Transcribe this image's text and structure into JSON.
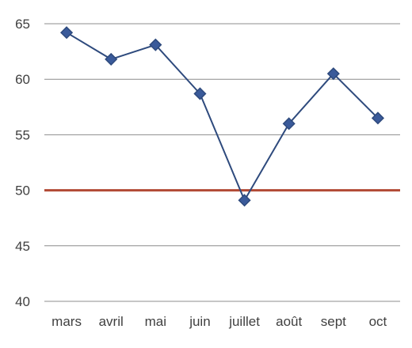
{
  "chart_data": {
    "type": "line",
    "categories": [
      "mars",
      "avril",
      "mai",
      "juin",
      "juillet",
      "août",
      "sept",
      "oct"
    ],
    "series": [
      {
        "values": [
          64.2,
          61.8,
          63.1,
          58.7,
          49.1,
          56.0,
          60.5,
          56.5
        ],
        "color": "#2E4A7D",
        "marker": "diamond",
        "marker_fill": "#3A5A9A"
      }
    ],
    "reference_line": {
      "y": 50,
      "color": "#B24A35"
    },
    "ylim": [
      40,
      65
    ],
    "yticks": [
      "40",
      "45",
      "50",
      "55",
      "60",
      "65"
    ],
    "title": "",
    "xlabel": "",
    "ylabel": "",
    "grid": true,
    "gridline_color": "#8C8C8C"
  }
}
